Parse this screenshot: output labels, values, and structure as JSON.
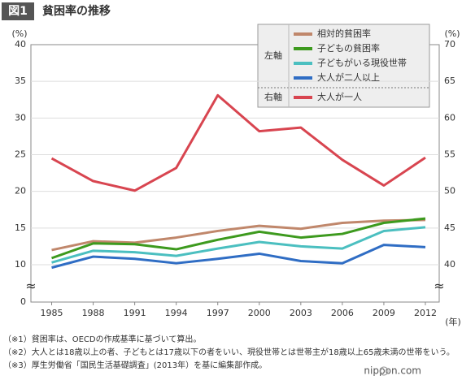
{
  "header": {
    "badge": "図1",
    "title": "貧困率の推移"
  },
  "chart_data": {
    "type": "line",
    "y_label": "(%)",
    "y2_label": "(%)",
    "x_label": "(年)",
    "x": [
      1985,
      1988,
      1991,
      1994,
      1997,
      2000,
      2003,
      2006,
      2009,
      2012
    ],
    "xlim": [
      1983.5,
      2013
    ],
    "xticks": [
      1985,
      1988,
      1991,
      1994,
      1997,
      2000,
      2003,
      2006,
      2009,
      2012
    ],
    "ylim": [
      0,
      40
    ],
    "ybreak": [
      0,
      10
    ],
    "yticks": [
      0,
      10,
      15,
      20,
      25,
      30,
      35,
      40
    ],
    "y2lim": [
      40,
      70
    ],
    "y2ticks": [
      40,
      45,
      50,
      55,
      60,
      65,
      70
    ],
    "grid": true,
    "legend_group_labels": {
      "y": "左軸",
      "y2": "右軸"
    },
    "series": [
      {
        "name": "相対的貧困率",
        "color": "#c0876b",
        "values": [
          12.0,
          13.2,
          13.0,
          13.7,
          14.6,
          15.3,
          14.9,
          15.7,
          16.0,
          16.1
        ]
      },
      {
        "name": "子どもの貧困率",
        "color": "#3d9a1e",
        "values": [
          10.9,
          12.9,
          12.8,
          12.1,
          13.4,
          14.5,
          13.7,
          14.2,
          15.7,
          16.3
        ]
      },
      {
        "name": "子どもがいる現役世帯",
        "color": "#4bbfc0",
        "values": [
          10.3,
          11.9,
          11.7,
          11.2,
          12.2,
          13.1,
          12.5,
          12.2,
          14.6,
          15.1
        ]
      },
      {
        "name": "大人が二人以上",
        "color": "#2f6dc4",
        "values": [
          9.6,
          11.1,
          10.8,
          10.2,
          10.8,
          11.5,
          10.5,
          10.2,
          12.7,
          12.4
        ]
      },
      {
        "name": "大人が一人",
        "color": "#d84550",
        "axis": "y2",
        "values": [
          54.5,
          51.4,
          50.1,
          53.2,
          63.1,
          58.2,
          58.7,
          54.3,
          50.8,
          54.6
        ]
      }
    ]
  },
  "footnotes": [
    "（※1）貧困率は、OECDの作成基準に基づいて算出。",
    "（※2）大人とは18歳以上の者、子どもとは17歳以下の者をいい、現役世帯とは世帯主が18歳以上65歳未満の世帯をいう。",
    "（※3）厚生労働省「国民生活基礎調査」(2013年）を基に編集部作成。"
  ],
  "logo": "nippon.com"
}
